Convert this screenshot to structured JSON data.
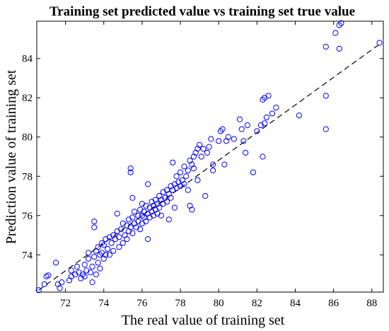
{
  "chart_data": {
    "type": "scatter",
    "title": "Training set predicted value vs training set true value",
    "xlabel": "The real value of training set",
    "ylabel": "Prediction value of training set",
    "xlim": [
      70.5,
      88.6
    ],
    "ylim": [
      72.1,
      85.9
    ],
    "xticks": [
      72,
      74,
      76,
      78,
      80,
      82,
      84,
      86,
      88
    ],
    "yticks": [
      74,
      76,
      78,
      80,
      82,
      84
    ],
    "grid": false,
    "marker_color": "#0000ff",
    "reference_line": {
      "style": "dashed",
      "color": "#000000",
      "from": [
        70.6,
        72.2
      ],
      "to": [
        88.5,
        84.8
      ]
    },
    "series": [
      {
        "points": [
          [
            70.6,
            72.2
          ],
          [
            70.9,
            72.5
          ],
          [
            71.0,
            72.9
          ],
          [
            71.1,
            72.95
          ],
          [
            71.5,
            73.6
          ],
          [
            71.6,
            72.5
          ],
          [
            71.7,
            72.3
          ],
          [
            71.8,
            72.6
          ],
          [
            72.2,
            72.7
          ],
          [
            72.3,
            72.9
          ],
          [
            72.3,
            73.2
          ],
          [
            72.5,
            73.0
          ],
          [
            72.6,
            73.4
          ],
          [
            72.7,
            73.1
          ],
          [
            72.8,
            72.8
          ],
          [
            72.9,
            73.0
          ],
          [
            73.0,
            73.5
          ],
          [
            73.0,
            72.9
          ],
          [
            73.1,
            73.2
          ],
          [
            73.2,
            73.8
          ],
          [
            73.2,
            74.1
          ],
          [
            73.3,
            73.1
          ],
          [
            73.4,
            73.4
          ],
          [
            73.4,
            72.6
          ],
          [
            73.5,
            73.9
          ],
          [
            73.5,
            75.4
          ],
          [
            73.5,
            75.7
          ],
          [
            73.6,
            74.2
          ],
          [
            73.6,
            73.0
          ],
          [
            73.7,
            73.6
          ],
          [
            73.7,
            74.4
          ],
          [
            73.8,
            74.0
          ],
          [
            73.8,
            73.3
          ],
          [
            73.9,
            74.6
          ],
          [
            73.9,
            74.1
          ],
          [
            74.0,
            74.5
          ],
          [
            74.0,
            73.8
          ],
          [
            74.1,
            74.0
          ],
          [
            74.1,
            74.8
          ],
          [
            74.2,
            74.3
          ],
          [
            74.3,
            74.0
          ],
          [
            74.3,
            74.9
          ],
          [
            74.4,
            74.6
          ],
          [
            74.5,
            75.0
          ],
          [
            74.5,
            74.2
          ],
          [
            74.6,
            74.8
          ],
          [
            74.7,
            75.2
          ],
          [
            74.7,
            76.1
          ],
          [
            74.8,
            74.9
          ],
          [
            74.8,
            74.4
          ],
          [
            74.9,
            75.3
          ],
          [
            75.0,
            75.6
          ],
          [
            75.0,
            74.6
          ],
          [
            75.1,
            75.0
          ],
          [
            75.2,
            75.5
          ],
          [
            75.2,
            74.8
          ],
          [
            75.3,
            75.8
          ],
          [
            75.3,
            75.2
          ],
          [
            75.4,
            75.4
          ],
          [
            75.4,
            78.2
          ],
          [
            75.4,
            78.4
          ],
          [
            75.5,
            75.9
          ],
          [
            75.5,
            76.9
          ],
          [
            75.5,
            75.1
          ],
          [
            75.6,
            75.6
          ],
          [
            75.6,
            76.2
          ],
          [
            75.7,
            75.4
          ],
          [
            75.8,
            76.0
          ],
          [
            75.8,
            75.7
          ],
          [
            75.9,
            76.3
          ],
          [
            75.9,
            75.3
          ],
          [
            76.0,
            76.0
          ],
          [
            76.0,
            75.6
          ],
          [
            76.0,
            76.6
          ],
          [
            76.1,
            76.2
          ],
          [
            76.1,
            75.9
          ],
          [
            76.2,
            76.5
          ],
          [
            76.2,
            75.7
          ],
          [
            76.3,
            77.6
          ],
          [
            76.3,
            76.1
          ],
          [
            76.3,
            74.8
          ],
          [
            76.4,
            76.4
          ],
          [
            76.4,
            75.9
          ],
          [
            76.5,
            76.7
          ],
          [
            76.5,
            76.2
          ],
          [
            76.6,
            76.0
          ],
          [
            76.6,
            76.5
          ],
          [
            76.7,
            76.8
          ],
          [
            76.7,
            76.3
          ],
          [
            76.8,
            76.6
          ],
          [
            76.8,
            76.1
          ],
          [
            76.9,
            77.0
          ],
          [
            76.9,
            76.4
          ],
          [
            77.0,
            76.8
          ],
          [
            77.0,
            76.0
          ],
          [
            77.1,
            77.2
          ],
          [
            77.1,
            76.6
          ],
          [
            77.2,
            76.9
          ],
          [
            77.3,
            77.3
          ],
          [
            77.3,
            76.7
          ],
          [
            77.4,
            77.1
          ],
          [
            77.4,
            75.8
          ],
          [
            77.5,
            77.5
          ],
          [
            77.5,
            76.9
          ],
          [
            77.6,
            77.3
          ],
          [
            77.6,
            78.7
          ],
          [
            77.7,
            76.4
          ],
          [
            77.7,
            77.6
          ],
          [
            77.8,
            77.4
          ],
          [
            77.8,
            78.0
          ],
          [
            77.9,
            77.7
          ],
          [
            78.0,
            77.5
          ],
          [
            78.0,
            78.2
          ],
          [
            78.1,
            77.8
          ],
          [
            78.2,
            78.5
          ],
          [
            78.2,
            77.6
          ],
          [
            78.3,
            78.0
          ],
          [
            78.4,
            77.3
          ],
          [
            78.4,
            78.3
          ],
          [
            78.5,
            78.8
          ],
          [
            78.5,
            76.5
          ],
          [
            78.6,
            78.6
          ],
          [
            78.6,
            76.3
          ],
          [
            78.7,
            79.0
          ],
          [
            78.7,
            78.4
          ],
          [
            78.8,
            79.2
          ],
          [
            78.9,
            77.8
          ],
          [
            78.9,
            79.4
          ],
          [
            79.0,
            79.6
          ],
          [
            79.1,
            79.0
          ],
          [
            79.2,
            79.4
          ],
          [
            79.3,
            77.0
          ],
          [
            79.4,
            79.2
          ],
          [
            79.5,
            79.5
          ],
          [
            79.6,
            79.9
          ],
          [
            79.7,
            78.3
          ],
          [
            79.7,
            78.6
          ],
          [
            80.0,
            79.8
          ],
          [
            80.1,
            80.3
          ],
          [
            80.2,
            80.4
          ],
          [
            80.3,
            78.6
          ],
          [
            80.4,
            79.8
          ],
          [
            80.5,
            80.0
          ],
          [
            80.8,
            79.9
          ],
          [
            81.1,
            80.9
          ],
          [
            81.2,
            80.4
          ],
          [
            81.3,
            79.8
          ],
          [
            81.4,
            79.2
          ],
          [
            81.5,
            80.6
          ],
          [
            81.8,
            78.2
          ],
          [
            82.0,
            80.3
          ],
          [
            82.2,
            80.6
          ],
          [
            82.3,
            81.9
          ],
          [
            82.3,
            79.0
          ],
          [
            82.4,
            80.7
          ],
          [
            82.4,
            82.0
          ],
          [
            82.5,
            81.0
          ],
          [
            82.6,
            82.1
          ],
          [
            82.8,
            81.2
          ],
          [
            83.0,
            81.5
          ],
          [
            84.2,
            81.1
          ],
          [
            85.6,
            84.6
          ],
          [
            85.6,
            82.1
          ],
          [
            85.6,
            80.4
          ],
          [
            86.1,
            85.3
          ],
          [
            86.3,
            84.5
          ],
          [
            86.3,
            85.7
          ],
          [
            86.4,
            85.8
          ],
          [
            88.4,
            84.8
          ]
        ]
      }
    ]
  }
}
